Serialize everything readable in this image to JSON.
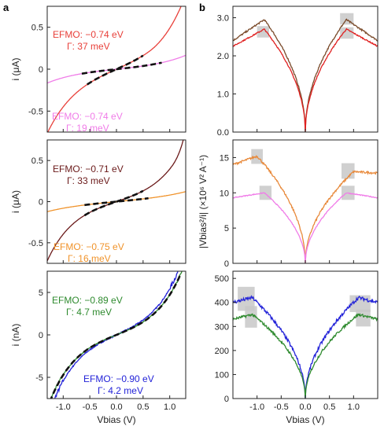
{
  "figure": {
    "panel_labels": [
      "a",
      "b"
    ],
    "y_axis_labels": {
      "current_uA": "i (μA)",
      "current_nA": "i (nA)",
      "ratio": "|Vbias²/i| (×10⁶ V² A⁻¹)"
    },
    "x_axis_label": "Vbias (V)"
  },
  "chart_data": [
    {
      "id": "a1",
      "type": "line",
      "panel": "a",
      "xlim": [
        -1.3,
        1.3
      ],
      "ylim": [
        -0.75,
        0.75
      ],
      "yticks": [
        -0.5,
        0,
        0.5
      ],
      "xticks": [
        -1.0,
        -0.5,
        0,
        0.5,
        1.0
      ],
      "ylabel": "i (μA)",
      "xlabel": "",
      "series": [
        {
          "color": "#e8403a",
          "fn": "sinh",
          "amp": 0.17,
          "k": 1.7,
          "annotation": {
            "E_FMO": "−0.74 eV",
            "Gamma": "37 meV"
          }
        },
        {
          "color": "#f07ce8",
          "fn": "sinh",
          "amp": 0.045,
          "k": 1.55,
          "annotation": {
            "E_FMO": "−0.74 eV",
            "Gamma": "19 meV"
          }
        }
      ],
      "fits": [
        {
          "series": 0,
          "x_range": [
            -0.55,
            0.5
          ]
        },
        {
          "series": 1,
          "x_range": [
            -0.65,
            0.85
          ]
        }
      ]
    },
    {
      "id": "a2",
      "type": "line",
      "panel": "a",
      "xlim": [
        -1.3,
        1.3
      ],
      "ylim": [
        -0.75,
        0.75
      ],
      "yticks": [
        -0.5,
        0,
        0.5
      ],
      "xticks": [
        -1.0,
        -0.5,
        0,
        0.5,
        1.0
      ],
      "ylabel": "i (μA)",
      "xlabel": "",
      "series": [
        {
          "color": "#6b1a1a",
          "fn": "sinh",
          "amp": 0.115,
          "k": 1.95,
          "annotation": {
            "E_FMO": "−0.71 eV",
            "Gamma": "33 meV"
          }
        },
        {
          "color": "#f0932b",
          "fn": "sinh",
          "amp": 0.05,
          "k": 1.25,
          "annotation": {
            "E_FMO": "−0.75 eV",
            "Gamma": "16 meV"
          }
        }
      ],
      "fits": [
        {
          "series": 0,
          "x_range": [
            -0.6,
            0.5
          ]
        },
        {
          "series": 1,
          "x_range": [
            -0.6,
            0.6
          ]
        }
      ]
    },
    {
      "id": "a3",
      "type": "line",
      "panel": "a",
      "xlim": [
        -1.3,
        1.3
      ],
      "ylim": [
        -7.5,
        7.5
      ],
      "yticks": [
        -5,
        0,
        5
      ],
      "xticks": [
        -1.0,
        -0.5,
        0,
        0.5,
        1.0
      ],
      "ylabel": "i (nA)",
      "xlabel": "Vbias (V)",
      "series": [
        {
          "color": "#2323d8",
          "fn": "sinh",
          "amp": 1.5,
          "k": 2.0,
          "noise": 0.25,
          "annotation": {
            "E_FMO": "−0.90 eV",
            "Gamma": "4.2 meV"
          }
        },
        {
          "color": "#2e8a2e",
          "fn": "sinh",
          "amp": 1.3,
          "k": 2.0,
          "noise": 0.15,
          "annotation": {
            "E_FMO": "−0.89 eV",
            "Gamma": "4.7 meV"
          }
        }
      ],
      "fits": [
        {
          "series": 1,
          "x_range": [
            -1.25,
            1.2
          ]
        }
      ]
    },
    {
      "id": "b1",
      "type": "line",
      "panel": "b",
      "xlim": [
        -1.5,
        1.5
      ],
      "ylim": [
        0,
        3.3
      ],
      "yticks": [
        0,
        1.0,
        2.0,
        3.0
      ],
      "xticks": [
        -1.0,
        -0.5,
        0,
        0.5,
        1.0
      ],
      "ylabel": "",
      "xlabel": "",
      "series": [
        {
          "color": "#7a4a2a",
          "peak": 2.95,
          "peak_x": 0.85,
          "edge": 2.4,
          "noise": 0.04
        },
        {
          "color": "#e02020",
          "peak": 2.7,
          "peak_x": 0.85,
          "edge": 2.25,
          "noise": 0.03
        }
      ],
      "highlight_boxes": [
        {
          "x": [
            -1.0,
            -0.75
          ],
          "y": [
            2.48,
            2.78
          ]
        },
        {
          "x": [
            0.72,
            1.0
          ],
          "y": [
            2.82,
            3.12
          ]
        },
        {
          "x": [
            0.72,
            1.0
          ],
          "y": [
            2.45,
            2.75
          ]
        }
      ]
    },
    {
      "id": "b2",
      "type": "line",
      "panel": "b",
      "xlim": [
        -1.5,
        1.5
      ],
      "ylim": [
        0,
        17.5
      ],
      "yticks": [
        0,
        5,
        10,
        15
      ],
      "xticks": [
        -1.0,
        -0.5,
        0,
        0.5,
        1.0
      ],
      "ylabel": "|Vbias²/i| (×10⁶ V² A⁻¹)",
      "xlabel": "",
      "series": [
        {
          "color": "#e8893a",
          "peak": 15.2,
          "peak_x": -1.0,
          "peak_r": 13.0,
          "peak_x_r": 1.0,
          "edge": 14.0,
          "edge_r": 12.8,
          "noise": 0.3
        },
        {
          "color": "#f07ce8",
          "peak": 10.0,
          "peak_x": 0.85,
          "edge": 9.3,
          "noise": 0.12
        }
      ],
      "highlight_boxes": [
        {
          "x": [
            -1.12,
            -0.88
          ],
          "y": [
            14.1,
            16.2
          ]
        },
        {
          "x": [
            0.75,
            1.02
          ],
          "y": [
            12.0,
            14.2
          ]
        },
        {
          "x": [
            -0.95,
            -0.7
          ],
          "y": [
            9.0,
            11.0
          ]
        },
        {
          "x": [
            0.75,
            1.02
          ],
          "y": [
            9.0,
            11.0
          ]
        }
      ]
    },
    {
      "id": "b3",
      "type": "line",
      "panel": "b",
      "xlim": [
        -1.5,
        1.5
      ],
      "ylim": [
        0,
        530
      ],
      "yticks": [
        0,
        100,
        200,
        300,
        400,
        500
      ],
      "xticks": [
        -1.0,
        -0.5,
        0,
        0.5,
        1.0
      ],
      "ylabel": "",
      "xlabel": "Vbias (V)",
      "series": [
        {
          "color": "#2323d8",
          "peak": 420,
          "peak_x": 1.1,
          "edge": 400,
          "noise": 14
        },
        {
          "color": "#2e8a2e",
          "peak": 350,
          "peak_x": 1.1,
          "edge": 330,
          "noise": 10
        }
      ],
      "highlight_boxes": [
        {
          "x": [
            -1.4,
            -1.05
          ],
          "y": [
            365,
            465
          ]
        },
        {
          "x": [
            -1.25,
            -1.0
          ],
          "y": [
            295,
            385
          ]
        },
        {
          "x": [
            0.92,
            1.35
          ],
          "y": [
            360,
            430
          ]
        },
        {
          "x": [
            1.05,
            1.35
          ],
          "y": [
            300,
            370
          ]
        }
      ]
    }
  ]
}
